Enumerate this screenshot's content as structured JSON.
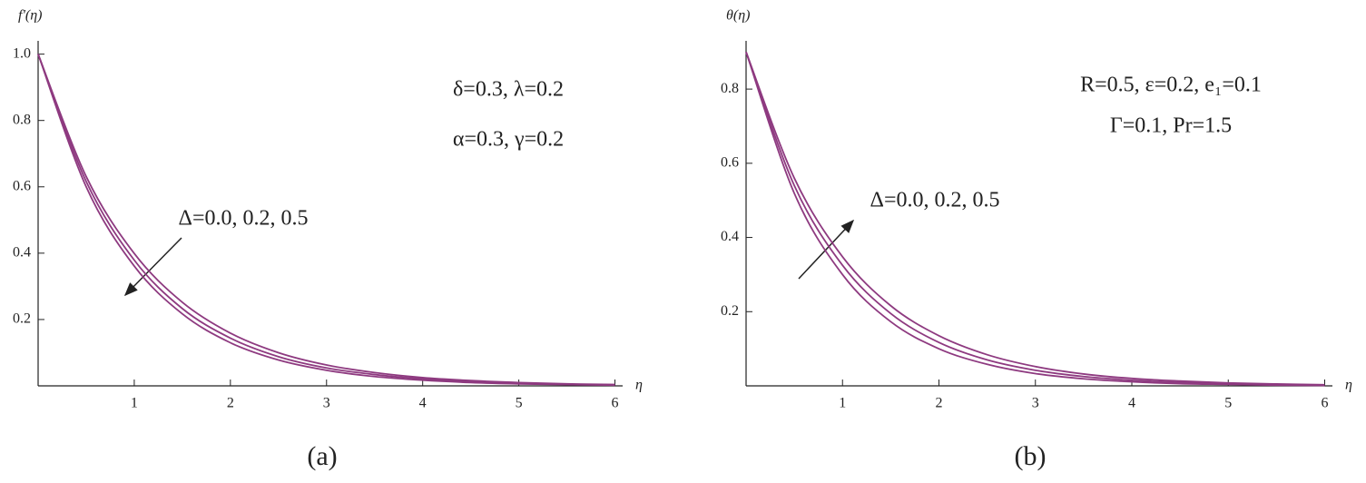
{
  "chart_data": [
    {
      "type": "line",
      "ylabel": "f'(η)",
      "xlabel": "η",
      "caption": "(a)",
      "annotations": [
        "δ=0.3, λ=0.2",
        "α=0.3, γ=0.2",
        "Δ=0.0, 0.2, 0.5"
      ],
      "x": [
        0,
        0.5,
        1,
        1.5,
        2,
        2.5,
        3,
        3.5,
        4,
        4.5,
        5,
        5.5,
        6
      ],
      "series": [
        {
          "color": "#8e3a80",
          "values": [
            1,
            0.6,
            0.361,
            0.217,
            0.13,
            0.078,
            0.047,
            0.028,
            0.017,
            0.01,
            0.006,
            0.004,
            0.002
          ]
        },
        {
          "color": "#8e3a80",
          "values": [
            1,
            0.616,
            0.379,
            0.233,
            0.144,
            0.088,
            0.054,
            0.034,
            0.021,
            0.013,
            0.008,
            0.005,
            0.003
          ]
        },
        {
          "color": "#8e3a80",
          "values": [
            1,
            0.631,
            0.399,
            0.252,
            0.159,
            0.1,
            0.063,
            0.04,
            0.025,
            0.016,
            0.01,
            0.006,
            0.004
          ]
        }
      ],
      "xlim": [
        0,
        6.08
      ],
      "ylim": [
        0,
        1.04
      ],
      "xticks": [
        1,
        2,
        3,
        4,
        5,
        6
      ],
      "yticks": [
        0.2,
        0.4,
        0.6,
        0.8,
        {
          "value": 1,
          "label": "1.0"
        }
      ]
    },
    {
      "type": "line",
      "ylabel": "θ(η)",
      "xlabel": "η",
      "caption": "(b)",
      "annotations": [
        "R=0.5, ε=0.2, e₁=0.1",
        "Γ=0.1, Pr=1.5",
        "Δ=0.0, 0.2, 0.5"
      ],
      "x": [
        0,
        0.5,
        1,
        1.5,
        2,
        2.5,
        3,
        3.5,
        4,
        4.5,
        5,
        5.5,
        6
      ],
      "series": [
        {
          "color": "#8e3a80",
          "values": [
            0.9,
            0.519,
            0.3,
            0.173,
            0.1,
            0.058,
            0.033,
            0.019,
            0.011,
            0.006,
            0.004,
            0.002,
            0.001
          ]
        },
        {
          "color": "#8e3a80",
          "values": [
            0.9,
            0.54,
            0.325,
            0.195,
            0.117,
            0.07,
            0.042,
            0.025,
            0.015,
            0.009,
            0.005,
            0.003,
            0.002
          ]
        },
        {
          "color": "#8e3a80",
          "values": [
            0.9,
            0.56,
            0.348,
            0.216,
            0.135,
            0.084,
            0.052,
            0.032,
            0.02,
            0.013,
            0.008,
            0.005,
            0.003
          ]
        }
      ],
      "xlim": [
        0,
        6.08
      ],
      "ylim": [
        0,
        0.93
      ],
      "xticks": [
        1,
        2,
        3,
        4,
        5,
        6
      ],
      "yticks": [
        0.2,
        0.4,
        0.6,
        0.8
      ]
    }
  ]
}
